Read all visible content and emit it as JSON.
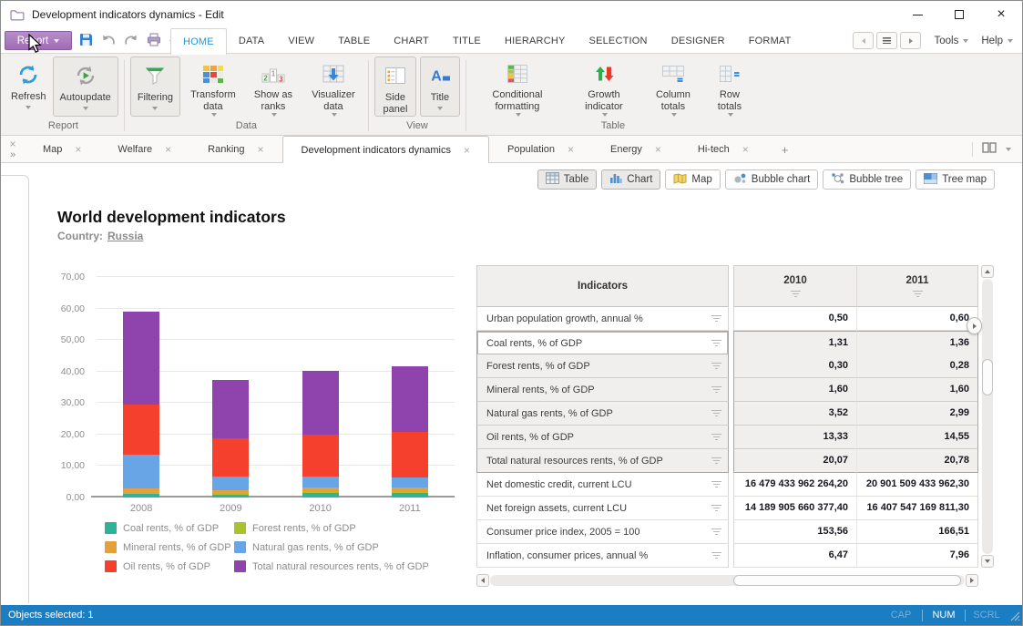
{
  "window": {
    "title": "Development indicators dynamics - Edit"
  },
  "menu": {
    "report_button": "Report",
    "tabs": [
      "HOME",
      "DATA",
      "VIEW",
      "TABLE",
      "CHART",
      "TITLE",
      "HIERARCHY",
      "SELECTION",
      "DESIGNER",
      "FORMAT"
    ],
    "active_tab": "HOME",
    "tools": "Tools",
    "help": "Help"
  },
  "ribbon": {
    "buttons": {
      "refresh": "Refresh",
      "autoupdate": "Autoupdate",
      "filtering": "Filtering",
      "transform_data": "Transform data",
      "show_as_ranks": "Show as ranks",
      "visualizer_data": "Visualizer data",
      "side_panel": "Side panel",
      "title": "Title",
      "conditional_formatting": "Conditional formatting",
      "growth_indicator": "Growth indicator",
      "column_totals": "Column totals",
      "row_totals": "Row totals"
    },
    "group_labels": [
      "Report",
      "Data",
      "View",
      "Table"
    ]
  },
  "sheet_tabs": {
    "items": [
      "Map",
      "Welfare",
      "Ranking",
      "Development indicators dynamics",
      "Population",
      "Energy",
      "Hi-tech"
    ],
    "active": "Development indicators dynamics",
    "add": "+"
  },
  "view_switcher": {
    "buttons": [
      "Table",
      "Chart",
      "Map",
      "Bubble chart",
      "Bubble tree",
      "Tree map"
    ]
  },
  "report": {
    "title": "World development indicators",
    "country_label": "Country:",
    "country": "Russia"
  },
  "chart_data": {
    "type": "bar",
    "stacked": true,
    "categories": [
      "2008",
      "2009",
      "2010",
      "2011"
    ],
    "series": [
      {
        "name": "Coal rents, % of GDP",
        "color": "#2eb398",
        "values": [
          1.2,
          0.9,
          1.31,
          1.36
        ]
      },
      {
        "name": "Forest rents, % of GDP",
        "color": "#a9c32f",
        "values": [
          0.3,
          0.35,
          0.3,
          0.28
        ]
      },
      {
        "name": "Mineral rents, % of GDP",
        "color": "#e3a13c",
        "values": [
          1.5,
          1.2,
          1.6,
          1.6
        ]
      },
      {
        "name": "Natural gas rents, % of GDP",
        "color": "#67a5e6",
        "values": [
          10.7,
          4.2,
          3.52,
          2.99
        ]
      },
      {
        "name": "Oil rents, % of GDP",
        "color": "#f4402d",
        "values": [
          15.8,
          12.1,
          13.33,
          14.55
        ]
      },
      {
        "name": "Total natural resources rents, % of GDP",
        "color": "#8f43ad",
        "values": [
          29.5,
          18.7,
          20.07,
          20.78
        ]
      }
    ],
    "ylim": [
      0,
      70
    ],
    "ytick_step": 10,
    "ytick_labels": [
      "0,00",
      "10,00",
      "20,00",
      "30,00",
      "40,00",
      "50,00",
      "60,00",
      "70,00"
    ],
    "xlabel": "",
    "ylabel": "",
    "grid": true,
    "legend_position": "bottom"
  },
  "table": {
    "header": {
      "indicators": "Indicators",
      "year1": "2010",
      "year2": "2011"
    },
    "rows": [
      {
        "label": "Urban population growth, annual %",
        "v2010": "0,50",
        "v2011": "0,60",
        "highlighted": false
      },
      {
        "label": "Coal rents, % of GDP",
        "v2010": "1,31",
        "v2011": "1,36",
        "highlighted": true
      },
      {
        "label": "Forest rents, % of GDP",
        "v2010": "0,30",
        "v2011": "0,28",
        "highlighted": true
      },
      {
        "label": "Mineral rents, % of GDP",
        "v2010": "1,60",
        "v2011": "1,60",
        "highlighted": true
      },
      {
        "label": "Natural gas rents, % of GDP",
        "v2010": "3,52",
        "v2011": "2,99",
        "highlighted": true
      },
      {
        "label": "Oil rents, % of GDP",
        "v2010": "13,33",
        "v2011": "14,55",
        "highlighted": true
      },
      {
        "label": "Total natural resources rents, % of GDP",
        "v2010": "20,07",
        "v2011": "20,78",
        "highlighted": true
      },
      {
        "label": "Net domestic credit, current LCU",
        "v2010": "16 479 433 962 264,20",
        "v2011": "20 901 509 433 962,30",
        "highlighted": false
      },
      {
        "label": "Net foreign assets, current LCU",
        "v2010": "14 189 905 660 377,40",
        "v2011": "16 407 547 169 811,30",
        "highlighted": false
      },
      {
        "label": "Consumer price index, 2005 = 100",
        "v2010": "153,56",
        "v2011": "166,51",
        "highlighted": false
      },
      {
        "label": "Inflation, consumer prices, annual %",
        "v2010": "6,47",
        "v2011": "7,96",
        "highlighted": false
      }
    ]
  },
  "status_bar": {
    "text": "Objects selected: 1",
    "indicators": [
      "CAP",
      "NUM",
      "SCRL"
    ],
    "active_indicator": "NUM"
  },
  "colors": {
    "report_button": "#a57bc0",
    "active_menu_tab_text": "#2496d5",
    "status_bar": "#1b7ec2"
  }
}
